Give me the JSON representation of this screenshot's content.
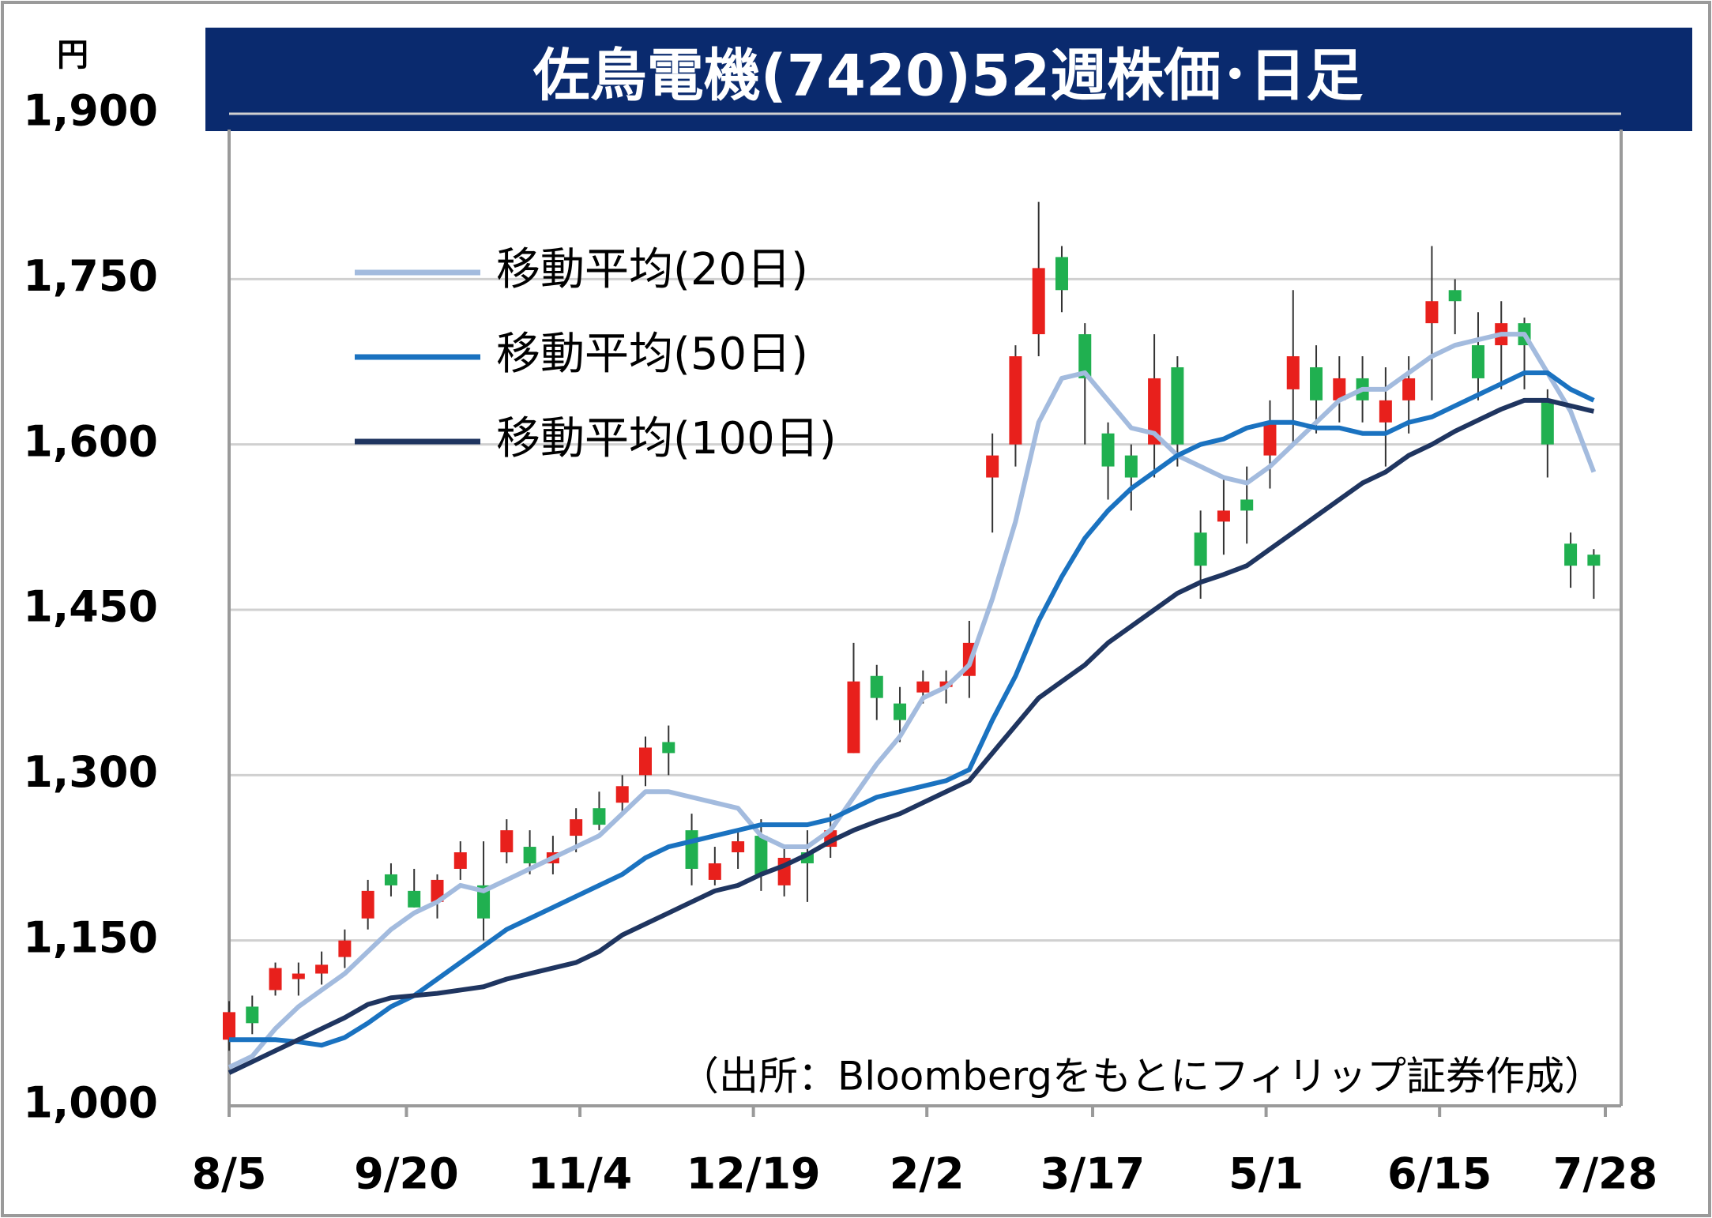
{
  "chart_data": {
    "type": "candlestick",
    "title": "佐鳥電機(7420)52週株価･日足",
    "unit_label": "円",
    "source_note": "（出所：Bloombergをもとにフィリップ証券作成）",
    "up_color": "#e8201c",
    "down_color": "#20b050",
    "x": [
      0,
      6,
      12,
      18,
      24,
      30,
      36,
      42,
      48,
      54,
      60,
      66,
      72,
      78,
      84,
      90,
      96,
      102,
      108,
      114,
      120,
      126,
      132,
      138,
      144,
      150,
      156,
      162,
      168,
      174,
      180,
      186,
      192,
      198,
      204,
      210,
      216,
      222,
      228,
      234,
      240,
      246,
      252,
      258,
      264,
      270,
      276,
      282,
      288,
      294,
      300,
      306,
      312,
      318,
      324,
      330,
      336,
      342,
      348,
      354
    ],
    "open": [
      1060,
      1090,
      1105,
      1115,
      1120,
      1135,
      1170,
      1210,
      1195,
      1185,
      1215,
      1200,
      1230,
      1235,
      1220,
      1245,
      1270,
      1275,
      1300,
      1330,
      1250,
      1205,
      1230,
      1245,
      1200,
      1230,
      1235,
      1320,
      1390,
      1365,
      1375,
      1380,
      1390,
      1570,
      1600,
      1700,
      1770,
      1700,
      1610,
      1590,
      1600,
      1670,
      1520,
      1530,
      1550,
      1590,
      1650,
      1670,
      1640,
      1660,
      1620,
      1640,
      1710,
      1740,
      1690,
      1690,
      1710,
      1640,
      1510,
      1500
    ],
    "high": [
      1095,
      1100,
      1130,
      1130,
      1140,
      1160,
      1205,
      1220,
      1215,
      1210,
      1240,
      1240,
      1260,
      1250,
      1245,
      1270,
      1285,
      1300,
      1335,
      1345,
      1265,
      1235,
      1250,
      1260,
      1235,
      1250,
      1265,
      1420,
      1400,
      1380,
      1395,
      1395,
      1440,
      1610,
      1690,
      1820,
      1780,
      1710,
      1620,
      1600,
      1700,
      1680,
      1540,
      1570,
      1580,
      1640,
      1740,
      1690,
      1680,
      1680,
      1670,
      1680,
      1780,
      1750,
      1720,
      1730,
      1715,
      1650,
      1520,
      1505
    ],
    "low": [
      1050,
      1065,
      1100,
      1100,
      1110,
      1125,
      1160,
      1190,
      1180,
      1170,
      1205,
      1150,
      1220,
      1210,
      1210,
      1230,
      1250,
      1265,
      1290,
      1300,
      1200,
      1200,
      1215,
      1195,
      1190,
      1185,
      1225,
      1320,
      1350,
      1330,
      1365,
      1365,
      1370,
      1520,
      1580,
      1680,
      1720,
      1600,
      1550,
      1540,
      1570,
      1580,
      1460,
      1500,
      1510,
      1560,
      1600,
      1610,
      1620,
      1620,
      1580,
      1610,
      1640,
      1700,
      1640,
      1650,
      1650,
      1570,
      1470,
      1460
    ],
    "close": [
      1085,
      1075,
      1125,
      1120,
      1128,
      1150,
      1195,
      1200,
      1180,
      1205,
      1230,
      1170,
      1250,
      1220,
      1230,
      1260,
      1255,
      1290,
      1325,
      1320,
      1215,
      1220,
      1240,
      1210,
      1225,
      1220,
      1250,
      1385,
      1370,
      1350,
      1385,
      1385,
      1420,
      1590,
      1680,
      1760,
      1740,
      1660,
      1580,
      1570,
      1660,
      1600,
      1490,
      1540,
      1540,
      1620,
      1680,
      1640,
      1660,
      1640,
      1640,
      1660,
      1730,
      1730,
      1660,
      1710,
      1690,
      1600,
      1490,
      1490
    ],
    "series": [
      {
        "name": "移動平均(20日)",
        "color": "#a3bbde",
        "values": [
          1035,
          1045,
          1070,
          1090,
          1105,
          1120,
          1140,
          1160,
          1175,
          1185,
          1200,
          1195,
          1205,
          1215,
          1225,
          1235,
          1245,
          1265,
          1285,
          1285,
          1280,
          1275,
          1270,
          1245,
          1235,
          1235,
          1250,
          1280,
          1310,
          1335,
          1370,
          1380,
          1400,
          1460,
          1530,
          1620,
          1660,
          1665,
          1640,
          1615,
          1610,
          1590,
          1580,
          1570,
          1565,
          1580,
          1600,
          1620,
          1640,
          1650,
          1650,
          1665,
          1680,
          1690,
          1695,
          1700,
          1700,
          1665,
          1630,
          1575
        ]
      },
      {
        "name": "移動平均(50日)",
        "color": "#1a72c0",
        "values": [
          1060,
          1060,
          1060,
          1058,
          1055,
          1062,
          1075,
          1090,
          1100,
          1115,
          1130,
          1145,
          1160,
          1170,
          1180,
          1190,
          1200,
          1210,
          1225,
          1235,
          1240,
          1245,
          1250,
          1255,
          1255,
          1255,
          1260,
          1270,
          1280,
          1285,
          1290,
          1295,
          1305,
          1350,
          1390,
          1440,
          1480,
          1515,
          1540,
          1560,
          1575,
          1590,
          1600,
          1605,
          1615,
          1620,
          1620,
          1615,
          1615,
          1610,
          1610,
          1620,
          1625,
          1635,
          1645,
          1655,
          1665,
          1665,
          1650,
          1640
        ]
      },
      {
        "name": "移動平均(100日)",
        "color": "#1f3560",
        "values": [
          1030,
          1040,
          1050,
          1060,
          1070,
          1080,
          1092,
          1098,
          1100,
          1102,
          1105,
          1108,
          1115,
          1120,
          1125,
          1130,
          1140,
          1155,
          1165,
          1175,
          1185,
          1195,
          1200,
          1210,
          1218,
          1228,
          1240,
          1250,
          1258,
          1265,
          1275,
          1285,
          1295,
          1320,
          1345,
          1370,
          1385,
          1400,
          1420,
          1435,
          1450,
          1465,
          1475,
          1482,
          1490,
          1505,
          1520,
          1535,
          1550,
          1565,
          1575,
          1590,
          1600,
          1612,
          1622,
          1632,
          1640,
          1640,
          1635,
          1630
        ]
      }
    ],
    "xlim": [
      0,
      357
    ],
    "xticks": [
      {
        "value": 0,
        "label": "8/5"
      },
      {
        "value": 46,
        "label": "9/20"
      },
      {
        "value": 91,
        "label": "11/4"
      },
      {
        "value": 136,
        "label": "12/19"
      },
      {
        "value": 181,
        "label": "2/2"
      },
      {
        "value": 224,
        "label": "3/17"
      },
      {
        "value": 269,
        "label": "5/1"
      },
      {
        "value": 314,
        "label": "6/15"
      },
      {
        "value": 357,
        "label": "7/28"
      }
    ],
    "ylim": [
      1000,
      1900
    ],
    "yticks": [
      {
        "value": 1000,
        "label": "1,000"
      },
      {
        "value": 1150,
        "label": "1,150"
      },
      {
        "value": 1300,
        "label": "1,300"
      },
      {
        "value": 1450,
        "label": "1,450"
      },
      {
        "value": 1600,
        "label": "1,600"
      },
      {
        "value": 1750,
        "label": "1,750"
      },
      {
        "value": 1900,
        "label": "1,900"
      }
    ],
    "grid": true
  }
}
